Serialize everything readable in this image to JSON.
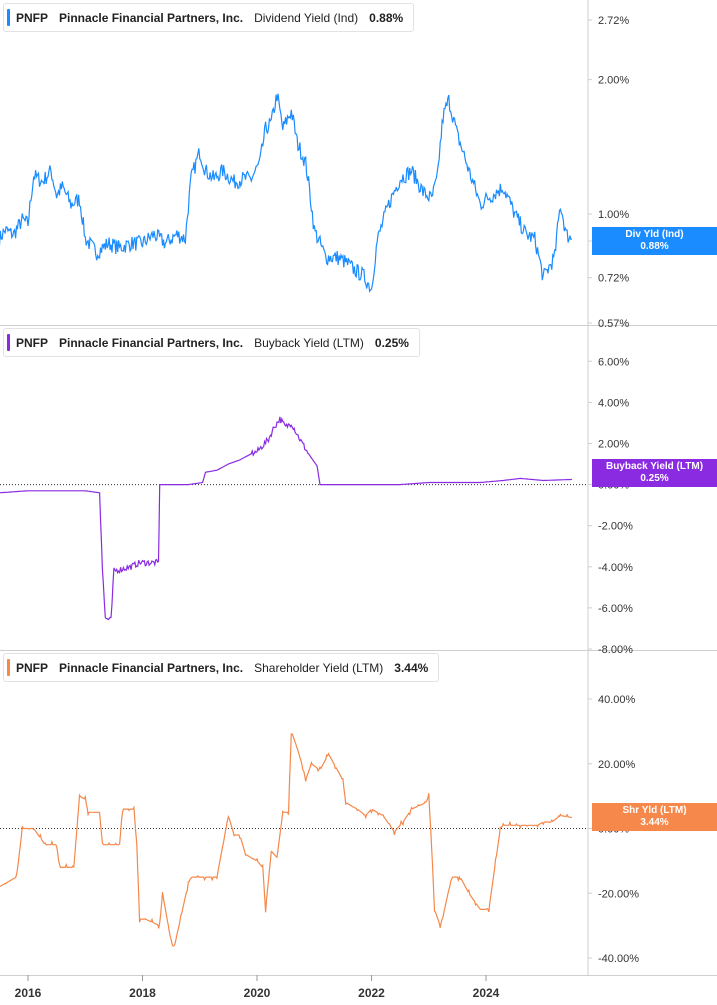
{
  "ticker": "PNFP",
  "company": "Pinnacle Financial Partners, Inc.",
  "panels": [
    {
      "metric": "Dividend Yield (Ind)",
      "value": "0.88%",
      "badge_label": "Div Yld (Ind)",
      "color": "#1a8cff"
    },
    {
      "metric": "Buyback Yield (LTM)",
      "value": "0.25%",
      "badge_label": "Buyback Yield (LTM)",
      "color": "#8a2be2"
    },
    {
      "metric": "Shareholder Yield (LTM)",
      "value": "3.44%",
      "badge_label": "Shr Yld (LTM)",
      "color": "#f5884a"
    }
  ],
  "chart_data": [
    {
      "type": "line",
      "series": [
        {
          "name": "Dividend Yield (Ind)",
          "color": "#1a8cff",
          "x": [
            2015.5,
            2015.6,
            2015.75,
            2015.9,
            2016.0,
            2016.1,
            2016.25,
            2016.4,
            2016.5,
            2016.6,
            2016.75,
            2016.9,
            2017.0,
            2017.2,
            2017.4,
            2017.6,
            2017.8,
            2018.0,
            2018.2,
            2018.4,
            2018.6,
            2018.75,
            2018.85,
            2019.0,
            2019.1,
            2019.25,
            2019.4,
            2019.6,
            2019.75,
            2019.9,
            2020.05,
            2020.15,
            2020.25,
            2020.35,
            2020.45,
            2020.6,
            2020.7,
            2020.85,
            2021.0,
            2021.2,
            2021.4,
            2021.55,
            2021.7,
            2021.85,
            2022.0,
            2022.1,
            2022.3,
            2022.5,
            2022.7,
            2022.9,
            2023.05,
            2023.15,
            2023.25,
            2023.35,
            2023.5,
            2023.7,
            2023.9,
            2024.0,
            2024.1,
            2024.3,
            2024.5,
            2024.7,
            2024.85,
            2025.0,
            2025.1,
            2025.2,
            2025.3,
            2025.4,
            2025.5
          ],
          "values": [
            0.88,
            0.92,
            0.9,
            0.97,
            0.95,
            1.22,
            1.18,
            1.25,
            1.1,
            1.15,
            1.05,
            1.08,
            0.88,
            0.82,
            0.86,
            0.84,
            0.86,
            0.86,
            0.9,
            0.86,
            0.9,
            0.88,
            1.2,
            1.38,
            1.25,
            1.2,
            1.25,
            1.18,
            1.2,
            1.2,
            1.3,
            1.55,
            1.6,
            1.85,
            1.55,
            1.7,
            1.45,
            1.3,
            0.92,
            0.8,
            0.8,
            0.78,
            0.75,
            0.73,
            0.68,
            0.87,
            1.05,
            1.2,
            1.25,
            1.12,
            1.08,
            1.2,
            1.65,
            1.8,
            1.5,
            1.25,
            1.05,
            1.08,
            1.1,
            1.15,
            1.0,
            0.9,
            0.88,
            0.72,
            0.76,
            0.8,
            1.05,
            0.9,
            0.88
          ],
          "last": "0.88%"
        }
      ],
      "y_ticks": [
        "2.72%",
        "2.00%",
        "1.00%",
        "0.87%",
        "0.72%",
        "0.57%"
      ],
      "y_scale": "log",
      "ylim": [
        0.57,
        2.72
      ]
    },
    {
      "type": "line",
      "series": [
        {
          "name": "Buyback Yield (LTM)",
          "color": "#8a2be2",
          "x": [
            2015.5,
            2016.0,
            2016.5,
            2017.0,
            2017.25,
            2017.3,
            2017.35,
            2017.45,
            2017.5,
            2017.8,
            2017.95,
            2018.28,
            2018.3,
            2018.5,
            2018.8,
            2019.05,
            2019.1,
            2019.3,
            2019.5,
            2019.7,
            2019.9,
            2020.0,
            2020.2,
            2020.3,
            2020.4,
            2020.5,
            2020.6,
            2020.75,
            2020.9,
            2021.05,
            2021.1,
            2021.5,
            2022.0,
            2022.5,
            2023.0,
            2023.5,
            2023.9,
            2024.3,
            2024.6,
            2025.0,
            2025.5
          ],
          "values": [
            -0.4,
            -0.3,
            -0.3,
            -0.3,
            -0.4,
            -4.0,
            -6.5,
            -6.6,
            -4.2,
            -4.0,
            -3.8,
            -3.8,
            0.0,
            0.0,
            0.0,
            0.1,
            0.6,
            0.7,
            1.0,
            1.2,
            1.5,
            1.6,
            2.2,
            2.8,
            3.2,
            2.8,
            3.0,
            2.2,
            1.5,
            0.9,
            0.0,
            0.0,
            0.0,
            0.0,
            0.1,
            0.1,
            0.1,
            0.2,
            0.3,
            0.2,
            0.25
          ],
          "last": "0.25%"
        }
      ],
      "y_ticks": [
        "6.00%",
        "4.00%",
        "2.00%",
        "0.00%",
        "-2.00%",
        "-4.00%",
        "-6.00%",
        "-8.00%"
      ],
      "ylim": [
        -8,
        6.5
      ]
    },
    {
      "type": "line",
      "series": [
        {
          "name": "Shareholder Yield (LTM)",
          "color": "#f5884a",
          "x": [
            2015.5,
            2015.8,
            2015.9,
            2016.1,
            2016.3,
            2016.5,
            2016.55,
            2016.8,
            2016.9,
            2017.0,
            2017.05,
            2017.25,
            2017.3,
            2017.6,
            2017.65,
            2017.85,
            2017.9,
            2017.95,
            2018.05,
            2018.3,
            2018.35,
            2018.45,
            2018.5,
            2018.55,
            2018.8,
            2018.85,
            2019.1,
            2019.3,
            2019.5,
            2019.6,
            2019.7,
            2019.8,
            2020.0,
            2020.1,
            2020.15,
            2020.25,
            2020.35,
            2020.45,
            2020.55,
            2020.6,
            2020.7,
            2020.8,
            2020.85,
            2020.95,
            2021.1,
            2021.25,
            2021.5,
            2021.55,
            2021.75,
            2021.9,
            2022.0,
            2022.2,
            2022.4,
            2022.55,
            2022.7,
            2022.95,
            2023.0,
            2023.05,
            2023.1,
            2023.2,
            2023.25,
            2023.4,
            2023.55,
            2023.7,
            2023.9,
            2024.05,
            2024.25,
            2024.3,
            2024.6,
            2024.9,
            2025.0,
            2025.15,
            2025.3,
            2025.5
          ],
          "values": [
            -18,
            -15,
            0,
            0,
            -5,
            -5,
            -12,
            -12,
            10,
            9,
            5,
            5,
            -5,
            -5,
            6,
            6,
            -5,
            -28,
            -28,
            -30,
            -20,
            -30,
            -35,
            -37,
            -17,
            -15,
            -15,
            -15,
            4,
            -2,
            -2,
            -8,
            -10,
            -12,
            -25,
            -7,
            -9,
            5,
            5,
            30,
            25,
            19,
            15,
            20,
            18,
            23,
            15,
            8,
            6,
            4,
            6,
            4,
            -1,
            2,
            6,
            8,
            10,
            -5,
            -25,
            -30,
            -27,
            -15,
            -15,
            -20,
            -25,
            -25,
            0,
            1,
            1,
            1,
            2,
            2,
            4,
            3.4
          ],
          "last": "3.44%"
        }
      ],
      "y_ticks": [
        "40.00%",
        "20.00%",
        "0.00%",
        "-20.00%",
        "-40.00%"
      ],
      "ylim": [
        -40,
        40
      ]
    }
  ],
  "x_axis": {
    "ticks": [
      {
        "label": "2016",
        "x": 2016
      },
      {
        "label": "2018",
        "x": 2018
      },
      {
        "label": "2020",
        "x": 2020
      },
      {
        "label": "2022",
        "x": 2022
      },
      {
        "label": "2024",
        "x": 2024
      }
    ],
    "range": [
      2015.5,
      2025.7
    ]
  }
}
